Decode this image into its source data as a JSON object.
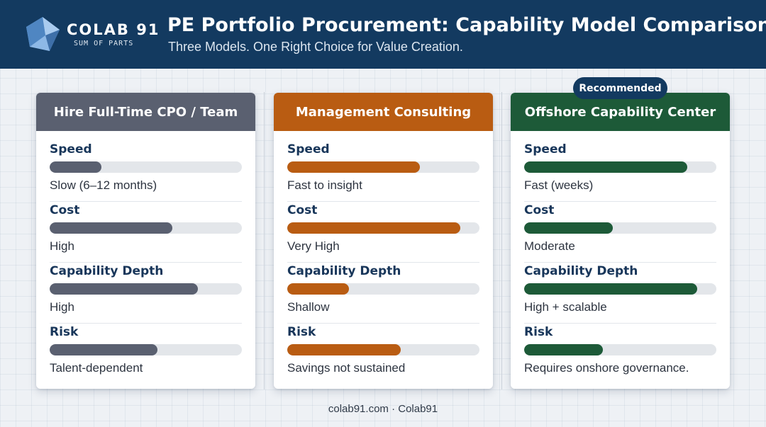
{
  "header": {
    "brand_name": "COLAB 91",
    "brand_tagline": "SUM OF PARTS",
    "title": "PE Portfolio Procurement: Capability Model Comparison",
    "subtitle": "Three Models. One Right Choice for Value Creation."
  },
  "recommended_badge": "Recommended",
  "cards": [
    {
      "title": "Hire Full-Time CPO / Team",
      "color": "#5a6070",
      "metrics": [
        {
          "label": "Speed",
          "value": "Slow (6–12 months)",
          "level": 0.27
        },
        {
          "label": "Cost",
          "value": "High",
          "level": 0.64
        },
        {
          "label": "Capability Depth",
          "value": "High",
          "level": 0.77
        },
        {
          "label": "Risk",
          "value": "Talent-dependent",
          "level": 0.56
        }
      ]
    },
    {
      "title": "Management Consulting",
      "color": "#b95c12",
      "metrics": [
        {
          "label": "Speed",
          "value": "Fast to insight",
          "level": 0.69
        },
        {
          "label": "Cost",
          "value": "Very High",
          "level": 0.9
        },
        {
          "label": "Capability Depth",
          "value": "Shallow",
          "level": 0.32
        },
        {
          "label": "Risk",
          "value": "Savings not sustained",
          "level": 0.59
        }
      ]
    },
    {
      "title": "Offshore Capability Center",
      "color": "#1d5a38",
      "metrics": [
        {
          "label": "Speed",
          "value": "Fast (weeks)",
          "level": 0.85
        },
        {
          "label": "Cost",
          "value": "Moderate",
          "level": 0.46
        },
        {
          "label": "Capability Depth",
          "value": "High + scalable",
          "level": 0.9
        },
        {
          "label": "Risk",
          "value": "Requires onshore governance.",
          "level": 0.41
        }
      ]
    }
  ],
  "footer": "colab91.com · Colab91"
}
